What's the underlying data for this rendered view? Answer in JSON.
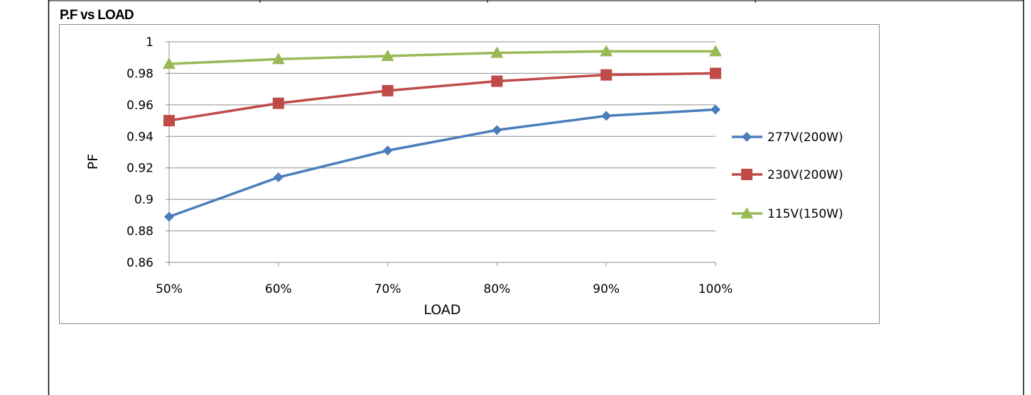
{
  "page": {
    "title": "P.F vs LOAD"
  },
  "chart_data": {
    "type": "line",
    "title": "",
    "xlabel": "LOAD",
    "ylabel": "PF",
    "categories": [
      "50%",
      "60%",
      "70%",
      "80%",
      "90%",
      "100%"
    ],
    "ylim": [
      0.86,
      1
    ],
    "yticks": [
      "0.86",
      "0.88",
      "0.9",
      "0.92",
      "0.94",
      "0.96",
      "0.98",
      "1"
    ],
    "grid": "horizontal",
    "legend_position": "right",
    "series": [
      {
        "name": "277V(200W)",
        "color": "#4a7ebb",
        "marker": "diamond",
        "values": [
          0.889,
          0.914,
          0.931,
          0.944,
          0.953,
          0.957
        ]
      },
      {
        "name": "230V(200W)",
        "color": "#be4b48",
        "marker": "square",
        "values": [
          0.95,
          0.961,
          0.969,
          0.975,
          0.979,
          0.98
        ]
      },
      {
        "name": "115V(150W)",
        "color": "#98b954",
        "marker": "triangle",
        "values": [
          0.986,
          0.989,
          0.991,
          0.993,
          0.994,
          0.994
        ]
      }
    ]
  }
}
